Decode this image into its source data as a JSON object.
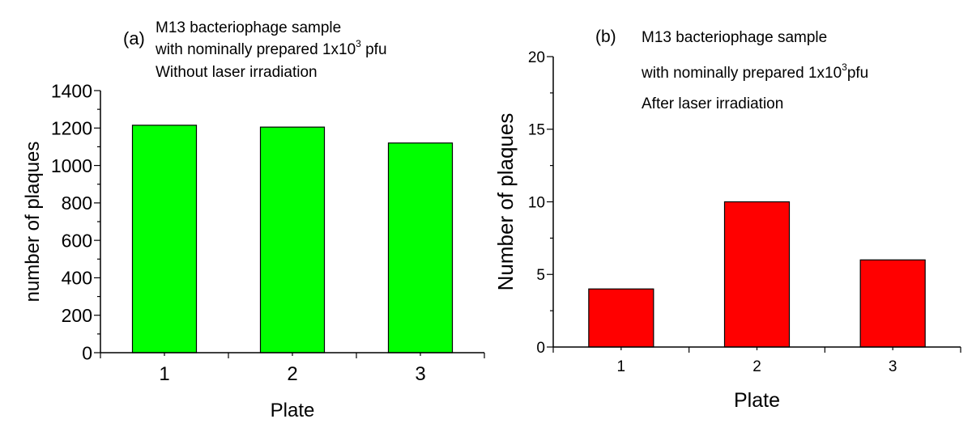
{
  "chart_data": [
    {
      "panel_label": "(a)",
      "type": "bar",
      "annotations": {
        "line1": "M13 bacteriophage sample",
        "line2_pre": "with nominally prepared 1x10",
        "line2_sup": "3",
        "line2_post": " pfu",
        "line3": "Without laser irradiation"
      },
      "categories": [
        "1",
        "2",
        "3"
      ],
      "values": [
        1215,
        1205,
        1120
      ],
      "xlabel": "Plate",
      "ylabel": "number of plaques",
      "ylim": [
        0,
        1400
      ],
      "yticks": [
        0,
        200,
        400,
        600,
        800,
        1000,
        1200,
        1400
      ],
      "bar_color": "#00ff00",
      "grid": false
    },
    {
      "panel_label": "(b)",
      "type": "bar",
      "annotations": {
        "line1": "M13 bacteriophage sample",
        "line2_pre": "with nominally prepared 1x10",
        "line2_sup": "3",
        "line2_post": "pfu",
        "line3": "After laser irradiation"
      },
      "categories": [
        "1",
        "2",
        "3"
      ],
      "values": [
        4,
        10,
        6
      ],
      "xlabel": "Plate",
      "ylabel": "Number of plaques",
      "ylim": [
        0,
        20
      ],
      "yticks": [
        0,
        5,
        10,
        15,
        20
      ],
      "bar_color": "#ff0000",
      "grid": false
    }
  ]
}
